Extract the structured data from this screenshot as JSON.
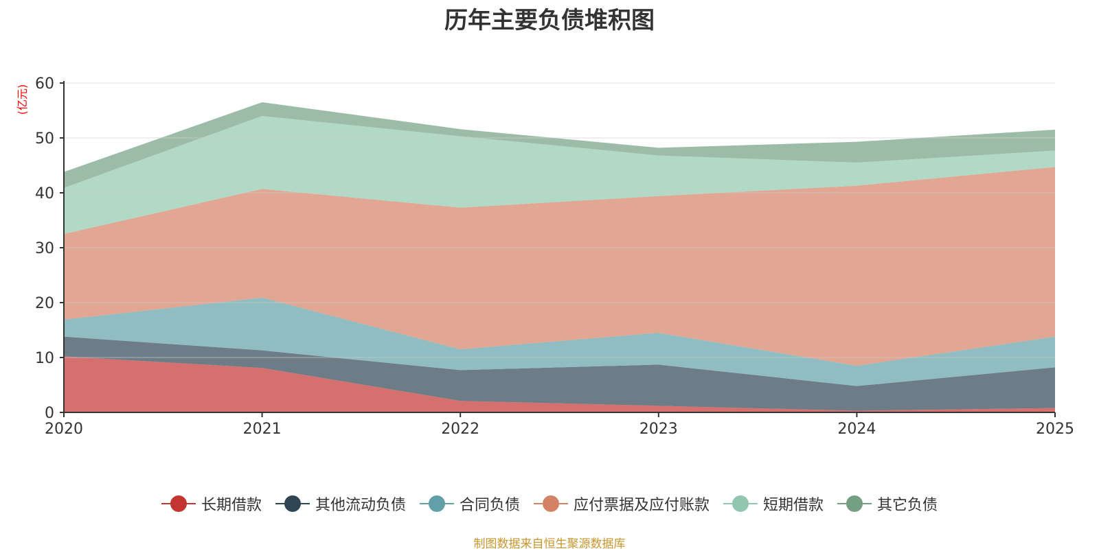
{
  "chart_data": {
    "type": "area",
    "stacked": true,
    "title": "历年主要负债堆积图",
    "xlabel": "",
    "ylabel": "(亿元)",
    "categories": [
      "2020",
      "2021",
      "2022",
      "2023",
      "2024",
      "2025"
    ],
    "ylim": [
      0,
      60
    ],
    "yticks": [
      0,
      10,
      20,
      30,
      40,
      50,
      60
    ],
    "grid": true,
    "legend_position": "bottom",
    "series": [
      {
        "name": "长期借款",
        "color": "#c23531",
        "values": [
          10.2,
          8.1,
          2.1,
          1.2,
          0.3,
          0.8
        ]
      },
      {
        "name": "其他流动负债",
        "color": "#2f4554",
        "values": [
          3.6,
          3.2,
          5.6,
          7.5,
          4.5,
          7.4
        ]
      },
      {
        "name": "合同负债",
        "color": "#61a0a8",
        "values": [
          3.1,
          9.6,
          3.8,
          5.8,
          3.7,
          5.6
        ]
      },
      {
        "name": "应付票据及应付账款",
        "color": "#d48265",
        "values": [
          15.6,
          19.8,
          25.8,
          24.9,
          32.8,
          30.9
        ]
      },
      {
        "name": "短期借款",
        "color": "#91c7ae",
        "values": [
          8.4,
          13.3,
          13.0,
          7.4,
          4.2,
          3.0
        ]
      },
      {
        "name": "其它负债",
        "color": "#749f83",
        "values": [
          2.9,
          2.5,
          1.3,
          1.4,
          3.8,
          3.8
        ]
      }
    ]
  },
  "footer": {
    "source": "制图数据来自恒生聚源数据库"
  }
}
